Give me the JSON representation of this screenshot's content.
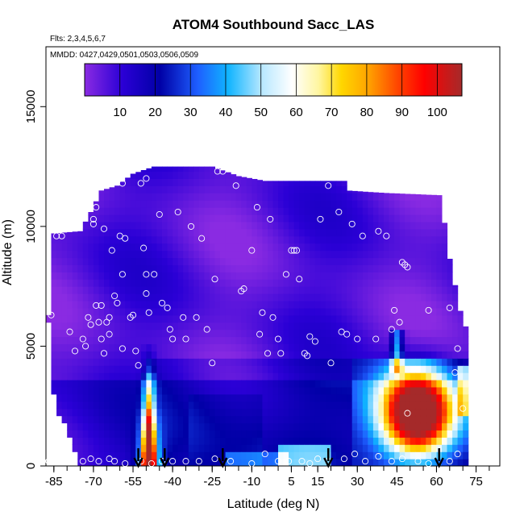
{
  "chart_data": {
    "type": "heatmap",
    "title": "ATOM4 Southbound Sacc_LAS",
    "subtitle_flights": "Flts: 2,3,4,5,6,7",
    "subtitle_dates": "MMDD: 0427,0429,0501,0503,0506,0509",
    "xlabel": "Latitude (deg N)",
    "ylabel": "Altitude (m)",
    "xlim": [
      -88,
      84
    ],
    "ylim": [
      0,
      17500
    ],
    "x_ticks": [
      -85,
      -70,
      -55,
      -40,
      -25,
      -10,
      5,
      15,
      30,
      45,
      60,
      75
    ],
    "x_tick_labels": [
      "-85",
      "-70",
      "-55",
      "-40",
      "-25",
      "-10",
      "5",
      "15",
      "30",
      "45",
      "60",
      "75"
    ],
    "y_ticks": [
      0,
      5000,
      10000,
      15000
    ],
    "y_tick_labels": [
      "0",
      "5000",
      "10000",
      "15000"
    ],
    "colorbar": {
      "min": 0,
      "max": 107,
      "ticks": [
        10,
        20,
        30,
        40,
        50,
        60,
        70,
        80,
        90,
        100
      ],
      "tick_labels": [
        "10",
        "20",
        "30",
        "40",
        "50",
        "60",
        "70",
        "80",
        "90",
        "100"
      ],
      "colors": [
        "#8a2be2",
        "#0000c0",
        "#1e90ff",
        "#ffffff",
        "#ffd700",
        "#ff8c00",
        "#ff0000",
        "#a52a2a"
      ]
    },
    "arrows_latitude": [
      -53,
      -43,
      -21,
      19,
      61
    ],
    "sample_points": [
      [
        -86,
        6300
      ],
      [
        -84,
        9600
      ],
      [
        -82,
        9600
      ],
      [
        -79,
        5600
      ],
      [
        -77,
        4800
      ],
      [
        -74,
        5300
      ],
      [
        -73,
        5000
      ],
      [
        -72,
        6200
      ],
      [
        -71,
        5900
      ],
      [
        -70,
        10300
      ],
      [
        -70,
        10100
      ],
      [
        -69,
        10800
      ],
      [
        -69,
        6700
      ],
      [
        -68,
        6000
      ],
      [
        -67,
        5300
      ],
      [
        -67,
        6700
      ],
      [
        -66,
        4700
      ],
      [
        -66,
        9900
      ],
      [
        -65,
        6000
      ],
      [
        -64,
        5500
      ],
      [
        -64,
        6200
      ],
      [
        -63,
        9000
      ],
      [
        -62,
        7100
      ],
      [
        -61,
        6800
      ],
      [
        -60,
        9600
      ],
      [
        -59,
        4900
      ],
      [
        -59,
        8000
      ],
      [
        -59,
        11800
      ],
      [
        -58,
        9500
      ],
      [
        -56,
        6200
      ],
      [
        -55,
        6300
      ],
      [
        -54,
        4800
      ],
      [
        -53,
        4200
      ],
      [
        -52,
        11800
      ],
      [
        -51,
        9100
      ],
      [
        -50,
        12000
      ],
      [
        -50,
        8000
      ],
      [
        -50,
        7200
      ],
      [
        -49,
        6400
      ],
      [
        -47,
        8000
      ],
      [
        -45,
        10500
      ],
      [
        -44,
        6800
      ],
      [
        -42,
        6600
      ],
      [
        -41,
        5700
      ],
      [
        -40,
        5300
      ],
      [
        -38,
        10600
      ],
      [
        -36,
        6200
      ],
      [
        -35,
        5300
      ],
      [
        -33,
        10000
      ],
      [
        -31,
        6200
      ],
      [
        -29,
        9500
      ],
      [
        -27,
        5700
      ],
      [
        -25,
        4300
      ],
      [
        -24,
        7800
      ],
      [
        -23,
        12300
      ],
      [
        -21,
        12300
      ],
      [
        -16,
        11700
      ],
      [
        -14,
        7300
      ],
      [
        -13,
        7400
      ],
      [
        -10,
        9000
      ],
      [
        -8,
        10800
      ],
      [
        -7,
        5500
      ],
      [
        -6,
        6400
      ],
      [
        -4,
        4700
      ],
      [
        -3,
        10300
      ],
      [
        -2,
        6200
      ],
      [
        0,
        5300
      ],
      [
        1,
        4700
      ],
      [
        3,
        8000
      ],
      [
        5,
        9000
      ],
      [
        6,
        9000
      ],
      [
        7,
        9000
      ],
      [
        8,
        7800
      ],
      [
        10,
        4700
      ],
      [
        11,
        4600
      ],
      [
        12,
        5400
      ],
      [
        14,
        5200
      ],
      [
        16,
        10300
      ],
      [
        19,
        11700
      ],
      [
        20,
        4300
      ],
      [
        23,
        10600
      ],
      [
        24,
        5600
      ],
      [
        26,
        5500
      ],
      [
        28,
        10100
      ],
      [
        30,
        5300
      ],
      [
        32,
        9600
      ],
      [
        37,
        5300
      ],
      [
        38,
        9800
      ],
      [
        41,
        9600
      ],
      [
        43,
        5700
      ],
      [
        44,
        6500
      ],
      [
        46,
        6000
      ],
      [
        47,
        8500
      ],
      [
        48,
        8400
      ],
      [
        49,
        8300
      ],
      [
        49,
        2200
      ],
      [
        57,
        6500
      ],
      [
        65,
        6600
      ],
      [
        67,
        3900
      ],
      [
        68,
        4900
      ],
      [
        70,
        2400
      ],
      [
        -87,
        200
      ],
      [
        -80,
        200
      ],
      [
        -74,
        200
      ],
      [
        -71,
        300
      ],
      [
        -68,
        200
      ],
      [
        -64,
        300
      ],
      [
        -62,
        200
      ],
      [
        -58,
        100
      ],
      [
        -52,
        200
      ],
      [
        -48,
        100
      ],
      [
        -44,
        200
      ],
      [
        -40,
        200
      ],
      [
        -35,
        200
      ],
      [
        -30,
        200
      ],
      [
        -24,
        300
      ],
      [
        -18,
        200
      ],
      [
        -10,
        100
      ],
      [
        -5,
        500
      ],
      [
        0,
        200
      ],
      [
        4,
        200
      ],
      [
        9,
        200
      ],
      [
        12,
        100
      ],
      [
        15,
        300
      ],
      [
        19,
        200
      ],
      [
        25,
        300
      ],
      [
        29,
        500
      ],
      [
        33,
        200
      ],
      [
        38,
        400
      ],
      [
        43,
        200
      ],
      [
        47,
        300
      ],
      [
        53,
        200
      ],
      [
        57,
        100
      ],
      [
        65,
        200
      ],
      [
        68,
        500
      ]
    ]
  }
}
